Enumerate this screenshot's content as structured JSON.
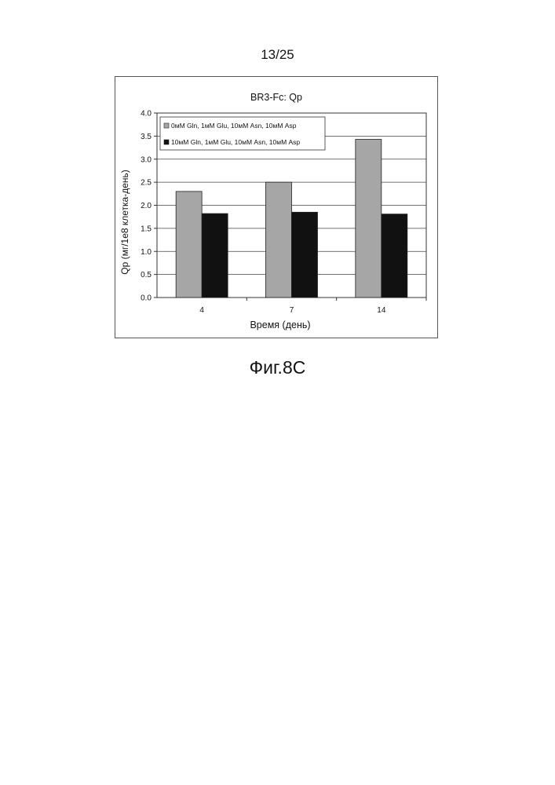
{
  "page": {
    "page_number": "13/25",
    "figure_caption": "Фиг.8С"
  },
  "chart_data": {
    "type": "bar",
    "title": "BR3-Fc: Qp",
    "xlabel": "Время (день)",
    "ylabel": "Qp (мг/1е8 клетка-день)",
    "categories": [
      "4",
      "7",
      "14"
    ],
    "ylim": [
      0,
      4.0
    ],
    "ytick_labels": [
      "0.0",
      "0.5",
      "1.0",
      "1.5",
      "2.0",
      "2.5",
      "3.0",
      "3.5",
      "4.0"
    ],
    "grid": true,
    "legend_position": "top-left",
    "series": [
      {
        "name": "0мМ Gln, 1мМ Glu, 10мМ Asn, 10мМ Asp",
        "values": [
          2.3,
          2.5,
          3.43
        ],
        "color": "#a6a6a6"
      },
      {
        "name": "10мМ Gln, 1мМ Glu, 10мМ Asn, 10мМ Asp",
        "values": [
          1.82,
          1.85,
          1.81
        ],
        "color": "#111111"
      }
    ]
  }
}
